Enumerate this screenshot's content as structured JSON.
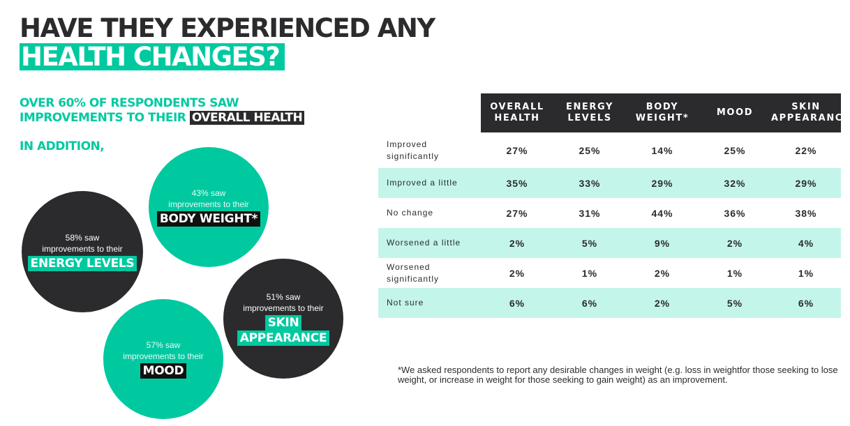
{
  "title": {
    "line1": "HAVE THEY EXPERIENCED ANY",
    "line2": "HEALTH CHANGES?"
  },
  "subtitle": {
    "line1": "OVER 60% OF RESPONDENTS SAW",
    "line2_prefix": "IMPROVEMENTS TO THEIR ",
    "line2_highlight": "OVERALL HEALTH"
  },
  "addition_label": "IN ADDITION,",
  "bubbles": {
    "body_weight": {
      "stat": "43% saw",
      "text": "improvements to their",
      "label": "BODY WEIGHT*"
    },
    "energy": {
      "stat": "58% saw",
      "text": "improvements to their",
      "label": "ENERGY LEVELS"
    },
    "skin": {
      "stat": "51% saw",
      "text": "improvements to their",
      "label1": "SKIN",
      "label2": "APPEARANCE"
    },
    "mood": {
      "stat": "57% saw",
      "text": "improvements to their",
      "label": "MOOD"
    }
  },
  "table": {
    "headers": [
      {
        "l1": "OVERALL",
        "l2": "HEALTH"
      },
      {
        "l1": "ENERGY",
        "l2": "LEVELS"
      },
      {
        "l1": "BODY",
        "l2": "WEIGHT*"
      },
      {
        "l1": "MOOD",
        "l2": ""
      },
      {
        "l1": "SKIN",
        "l2": "APPEARANCE"
      }
    ],
    "rows": [
      {
        "l1": "Improved",
        "l2": "significantly",
        "values": [
          "27%",
          "25%",
          "14%",
          "25%",
          "22%"
        ]
      },
      {
        "l1": "Improved a little",
        "l2": "",
        "values": [
          "35%",
          "33%",
          "29%",
          "32%",
          "29%"
        ]
      },
      {
        "l1": "No change",
        "l2": "",
        "values": [
          "27%",
          "31%",
          "44%",
          "36%",
          "38%"
        ]
      },
      {
        "l1": "Worsened a little",
        "l2": "",
        "values": [
          "2%",
          "5%",
          "9%",
          "2%",
          "4%"
        ]
      },
      {
        "l1": "Worsened",
        "l2": "significantly",
        "values": [
          "2%",
          "1%",
          "2%",
          "1%",
          "1%"
        ]
      },
      {
        "l1": "Not sure",
        "l2": "",
        "values": [
          "6%",
          "6%",
          "2%",
          "5%",
          "6%"
        ]
      }
    ]
  },
  "footnote": "*We asked respondents to report any desirable changes in weight (e.g. loss in weightfor those seeking to lose weight, or increase in weight for those seeking to gain weight) as an improvement.",
  "colors": {
    "accent": "#00c9a0",
    "dark": "#2b2b2d",
    "row_alt": "#c4f5eb"
  }
}
